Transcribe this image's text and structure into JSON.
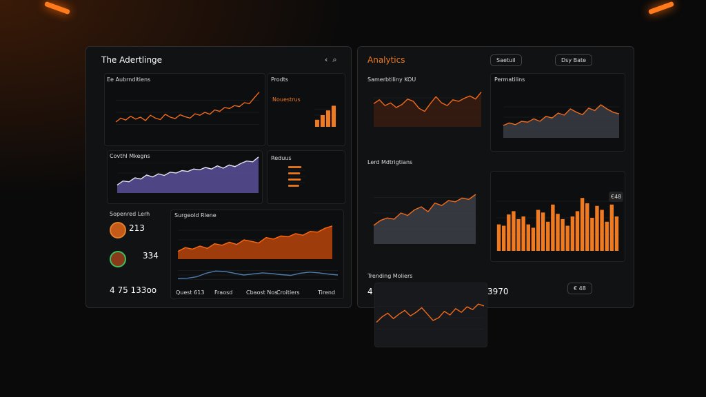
{
  "left": {
    "title": "The Adertlinge",
    "panels": {
      "a": "Ee Aubrnditiens",
      "b": "Prodts",
      "b_sub": "Nouestrus",
      "c": "Covthl Mkegns",
      "d": "Reduus",
      "e": "Sopenred Lerh",
      "e_v1": "213",
      "e_v2": "334",
      "e_total": "4 75 133oo",
      "f": "Surgeold Rlene",
      "f_foot": [
        "Quest 613",
        "Fraosd",
        "Cbaost Nos",
        "Croitiers",
        "Tirend"
      ]
    }
  },
  "right": {
    "title": "Analytics",
    "buttons": [
      "Saetuil",
      "Dsy Bate"
    ],
    "panels": {
      "a": "Samerbtiliny KOU",
      "b": "Permatilins",
      "c": "Lerd Mdtrigtians",
      "c_badge": "€48",
      "d": "Trending Moliers",
      "d_v1": "4",
      "d_v2": "3970",
      "d_btn": "€ 48"
    }
  },
  "charts": [
    {
      "type": "line",
      "color": "#f26a1b",
      "ylim": [
        0,
        100
      ],
      "values": [
        30,
        38,
        34,
        42,
        36,
        40,
        33,
        44,
        38,
        35,
        46,
        40,
        37,
        45,
        41,
        38,
        47,
        44,
        50,
        46,
        55,
        52,
        60,
        58,
        64,
        62,
        70,
        68,
        80,
        92
      ]
    },
    {
      "type": "area",
      "color": "#e8e4f0",
      "fill": "#5a4f9a",
      "ylim": [
        0,
        100
      ],
      "values": [
        20,
        30,
        28,
        38,
        35,
        45,
        40,
        48,
        44,
        52,
        50,
        56,
        54,
        60,
        58,
        64,
        60,
        68,
        62,
        70,
        66,
        74,
        80,
        78,
        90
      ]
    },
    {
      "type": "bar",
      "color": "#f07a20",
      "ylim": [
        0,
        10
      ],
      "values": [
        3,
        5,
        7,
        9
      ]
    },
    {
      "type": "hbar",
      "color": "#f07a20",
      "ylim": [
        0,
        100
      ],
      "values": [
        80,
        72,
        76,
        66
      ]
    },
    {
      "type": "area",
      "color": "#ff6a10",
      "fill": "#b8440c",
      "ylim": [
        0,
        100
      ],
      "values": [
        20,
        30,
        26,
        34,
        28,
        40,
        36,
        44,
        38,
        50,
        46,
        42,
        56,
        52,
        60,
        58,
        66,
        62,
        72,
        70,
        80,
        86
      ]
    },
    {
      "type": "line",
      "color": "#4e7fb0",
      "ylim": [
        0,
        100
      ],
      "values": [
        30,
        32,
        40,
        60,
        72,
        70,
        60,
        50,
        56,
        62,
        58,
        52,
        48,
        60,
        66,
        62,
        55,
        50
      ]
    },
    {
      "type": "area",
      "color": "#f26a1b",
      "fill": "#3a1c10",
      "ylim": [
        0,
        100
      ],
      "values": [
        60,
        70,
        55,
        62,
        50,
        58,
        72,
        66,
        48,
        40,
        60,
        78,
        62,
        55,
        70,
        66,
        74,
        80,
        72,
        90
      ]
    },
    {
      "type": "area",
      "color": "#f26a1b",
      "fill": "#3a3d44",
      "ylim": [
        0,
        100
      ],
      "values": [
        30,
        36,
        32,
        40,
        38,
        46,
        40,
        52,
        48,
        60,
        55,
        70,
        62,
        56,
        72,
        66,
        80,
        70,
        62,
        58
      ]
    },
    {
      "type": "area",
      "color": "#f26a1b",
      "fill": "#3c3f45",
      "ylim": [
        0,
        100
      ],
      "values": [
        30,
        38,
        42,
        40,
        50,
        46,
        55,
        60,
        52,
        66,
        62,
        70,
        68,
        74,
        72,
        80
      ]
    },
    {
      "type": "bar",
      "color": "#f07a20",
      "ylim": [
        0,
        100
      ],
      "values": [
        40,
        38,
        55,
        60,
        48,
        52,
        40,
        35,
        62,
        58,
        44,
        70,
        56,
        48,
        38,
        52,
        60,
        80,
        72,
        50,
        68,
        62,
        44,
        70,
        52
      ]
    },
    {
      "type": "line",
      "color": "#f26a1b",
      "ylim": [
        0,
        100
      ],
      "values": [
        40,
        52,
        60,
        48,
        58,
        66,
        54,
        62,
        72,
        58,
        44,
        50,
        64,
        56,
        70,
        62,
        74,
        68,
        80,
        76
      ]
    }
  ]
}
